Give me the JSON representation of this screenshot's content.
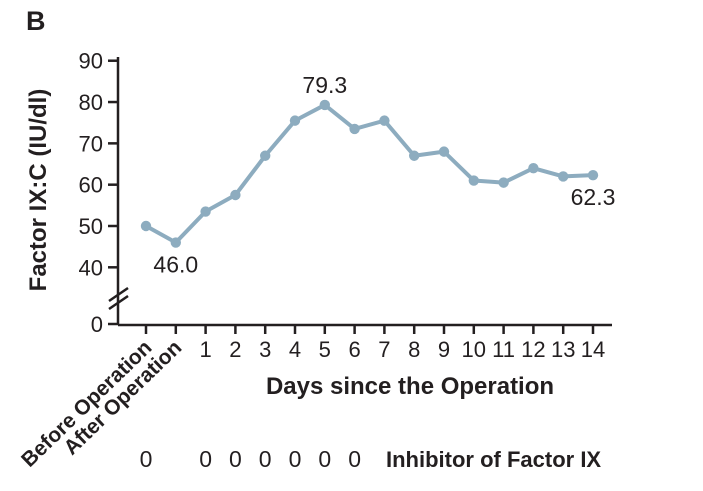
{
  "panel_label": "B",
  "chart_data": {
    "type": "line",
    "title": "",
    "ylabel": "Factor IX:C (IU/dl)",
    "xlabel": "Days since the Operation",
    "categories": [
      "Before Operation",
      "After Operation",
      "1",
      "2",
      "3",
      "4",
      "5",
      "6",
      "7",
      "8",
      "9",
      "10",
      "11",
      "12",
      "13",
      "14"
    ],
    "series": [
      {
        "name": "Factor IX:C",
        "values": [
          50.0,
          46.0,
          53.5,
          57.5,
          67.0,
          75.5,
          79.3,
          73.5,
          75.5,
          67.0,
          68.0,
          61.0,
          60.5,
          64.0,
          62.0,
          62.3
        ]
      }
    ],
    "point_labels": [
      {
        "category_index": 1,
        "text": "46.0",
        "placement": "below"
      },
      {
        "category_index": 6,
        "text": "79.3",
        "placement": "above"
      },
      {
        "category_index": 15,
        "text": "62.3",
        "placement": "below"
      }
    ],
    "y_ticks": [
      0,
      40,
      50,
      60,
      70,
      80,
      90
    ],
    "y_axis_break_between": [
      0,
      40
    ],
    "ylim": [
      40,
      90
    ],
    "grid": false,
    "legend": "none",
    "line_color": "#8dacbf",
    "text_color": "#231f20",
    "inhibitor_row": {
      "label": "Inhibitor of Factor IX",
      "values": [
        "0",
        "0",
        "0",
        "0",
        "0",
        "0",
        "0"
      ],
      "value_categories": [
        "Before Operation",
        "1",
        "2",
        "3",
        "4",
        "5",
        "6"
      ]
    }
  }
}
